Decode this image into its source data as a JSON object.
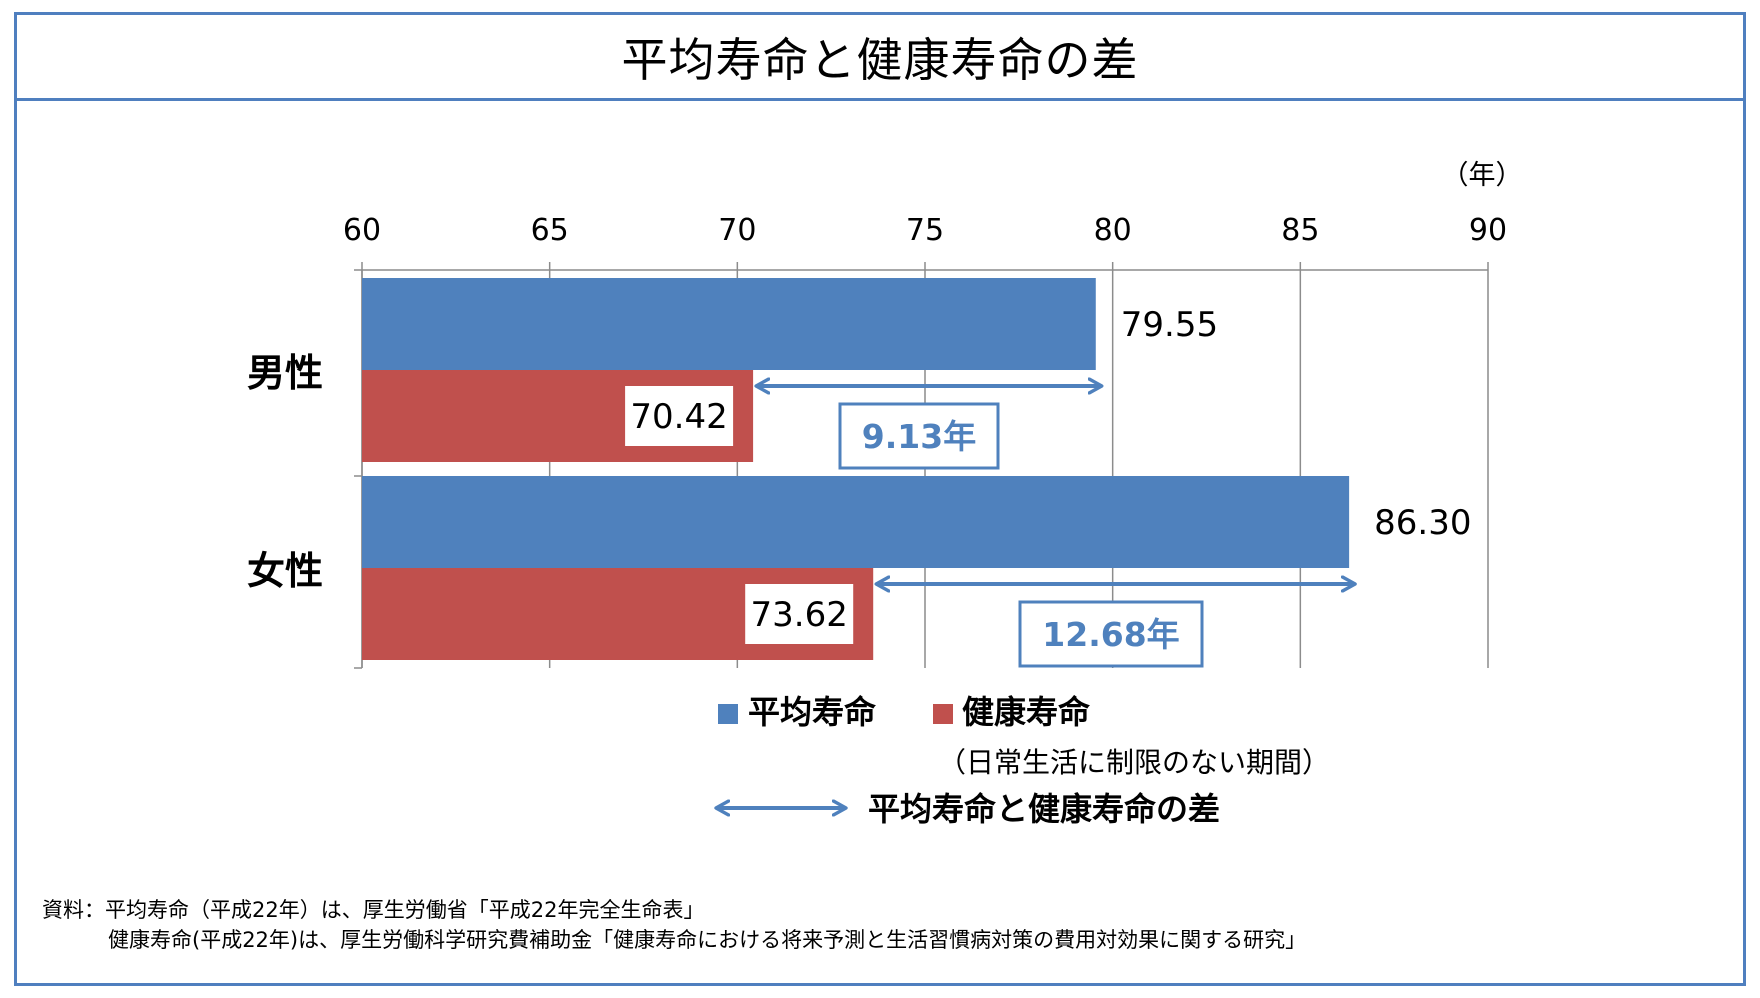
{
  "title": "平均寿命と健康寿命の差",
  "chart_data": {
    "type": "bar",
    "orientation": "horizontal",
    "categories": [
      "男性",
      "女性"
    ],
    "series": [
      {
        "name": "平均寿命",
        "color": "#4f81bd",
        "values": [
          79.55,
          86.3
        ],
        "labels": [
          "79.55",
          "86.30"
        ]
      },
      {
        "name": "健康寿命",
        "color": "#c0504d",
        "values": [
          70.42,
          73.62
        ],
        "labels": [
          "70.42",
          "73.62"
        ]
      }
    ],
    "xlim": [
      60,
      90
    ],
    "xticks": [
      60,
      65,
      70,
      75,
      80,
      85,
      90
    ],
    "xticklabels": [
      "60",
      "65",
      "70",
      "75",
      "80",
      "85",
      "90"
    ],
    "unit_label": "（年）",
    "grid": true,
    "axis_position": "top",
    "differences": [
      {
        "category": "男性",
        "from": 70.42,
        "to": 79.55,
        "label": "9.13年"
      },
      {
        "category": "女性",
        "from": 73.62,
        "to": 86.3,
        "label": "12.68年"
      }
    ],
    "legend": {
      "position": "bottom",
      "items": [
        "平均寿命",
        "健康寿命"
      ],
      "note": "（日常生活に制限のない期間）",
      "arrow_label": "平均寿命と健康寿命の差"
    },
    "arrow_color": "#4f81bd"
  },
  "source": {
    "line1": "資料：平均寿命（平成22年）は、厚生労働省「平成22年完全生命表」",
    "line2": "健康寿命(平成22年)は、厚生労働科学研究費補助金「健康寿命における将来予測と生活習慣病対策の費用対効果に関する研究」"
  }
}
